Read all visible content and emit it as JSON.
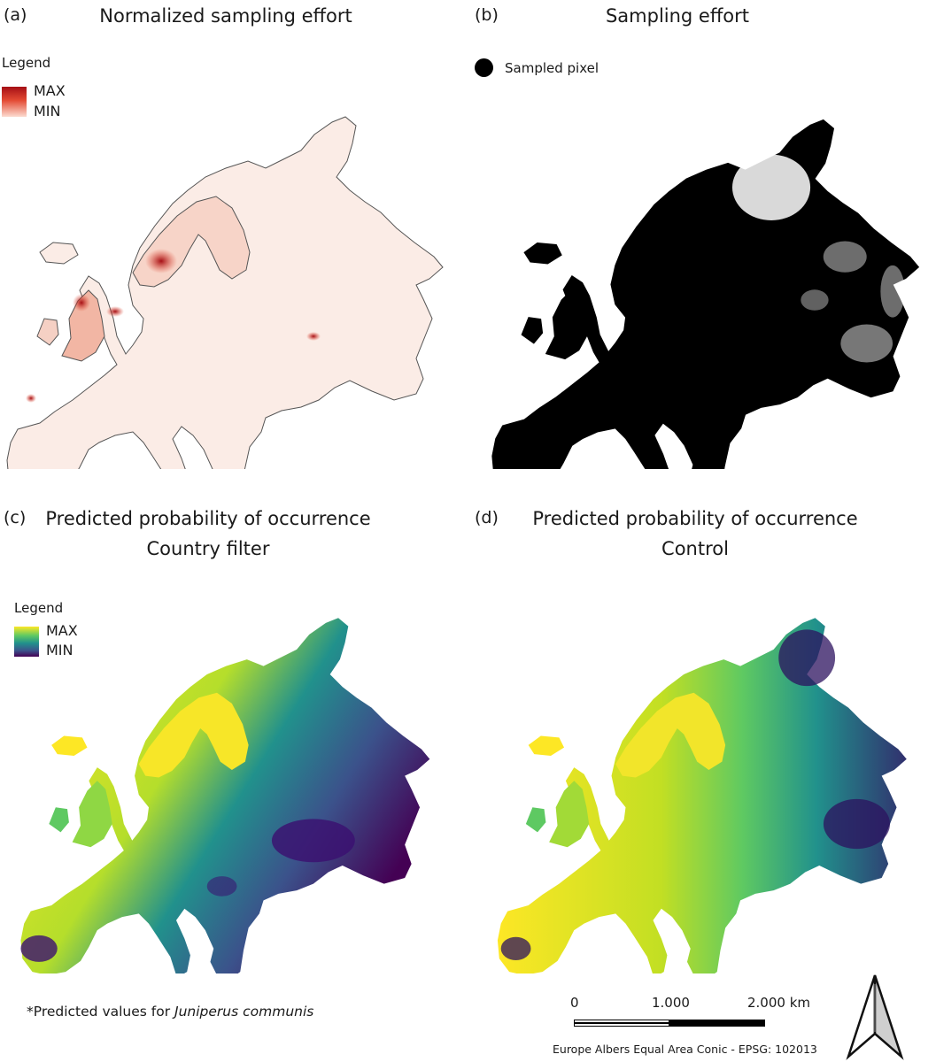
{
  "panels": {
    "a": {
      "letter": "(a)",
      "title": "Normalized sampling effort",
      "legend": {
        "title": "Legend",
        "max": "MAX",
        "min": "MIN"
      }
    },
    "b": {
      "letter": "(b)",
      "title": "Sampling effort",
      "legend": {
        "item": "Sampled pixel"
      }
    },
    "c": {
      "letter": "(c)",
      "title": "Predicted probability of occurrence",
      "subtitle": "Country filter",
      "legend": {
        "title": "Legend",
        "max": "MAX",
        "min": "MIN"
      }
    },
    "d": {
      "letter": "(d)",
      "title": "Predicted probability of occurrence",
      "subtitle": "Control"
    }
  },
  "footnote": {
    "prefix": "*Predicted values for ",
    "species": "Juniperus communis"
  },
  "scale_bar": {
    "labels": [
      "0",
      "1.000",
      "2.000 km"
    ]
  },
  "crs": "Europe Albers Equal Area Conic - EPSG: 102013",
  "icons": {
    "north_arrow": "north-arrow-icon",
    "legend_dot": "filled-circle-icon"
  },
  "colors": {
    "effort_max": "#a50f15",
    "effort_min": "#fcdcd0",
    "occ_max": "#fde725",
    "occ_min": "#440154",
    "sampled": "#000000"
  }
}
